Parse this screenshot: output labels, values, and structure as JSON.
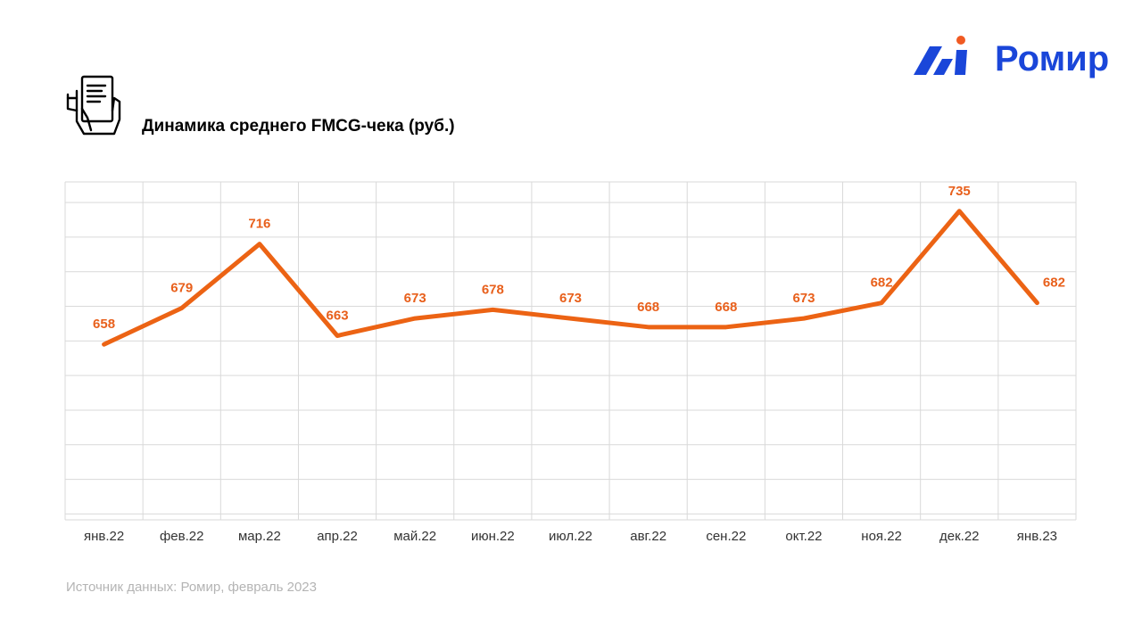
{
  "header": {
    "title": "Динамика среднего FMCG-чека (руб.)",
    "icon": "receipt-hand-icon"
  },
  "logo": {
    "text": "Ромир",
    "mark_icon": "romir-logo-mark",
    "brand_color": "#1a46d9",
    "dot_color": "#f05a22"
  },
  "footer": {
    "source": "Источник данных: Ромир, февраль 2023"
  },
  "chart_data": {
    "type": "line",
    "title": "Динамика среднего FMCG-чека (руб.)",
    "categories": [
      "янв.22",
      "фев.22",
      "мар.22",
      "апр.22",
      "май.22",
      "июн.22",
      "июл.22",
      "авг.22",
      "сен.22",
      "окт.22",
      "ноя.22",
      "дек.22",
      "янв.23"
    ],
    "series": [
      {
        "values": [
          658,
          679,
          716,
          663,
          673,
          678,
          673,
          668,
          668,
          673,
          682,
          735,
          682
        ]
      }
    ],
    "xlabel": "",
    "ylabel": "",
    "y_tick_labels_shown": false,
    "data_labels": true,
    "grid": true,
    "line_color": "#ec6314",
    "label_color": "#e8601c",
    "grid_color": "#d9d9d9"
  }
}
